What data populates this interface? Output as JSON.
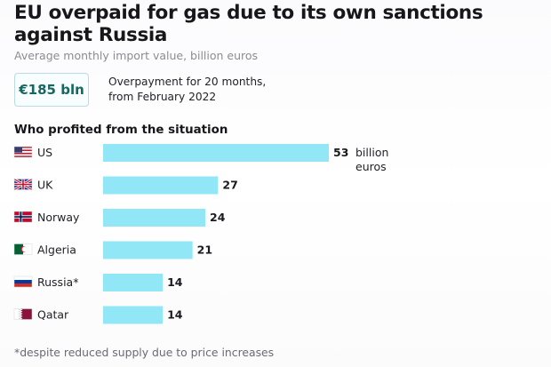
{
  "header": {
    "title": "EU overpaid for gas due to its own sanctions against Russia",
    "subtitle": "Average monthly import value, billion euros"
  },
  "summary": {
    "badge": "€185 bln",
    "text": "Overpayment for 20 months,\nfrom February 2022"
  },
  "section": {
    "title": "Who profited from the situation"
  },
  "footnote": "*despite reduced supply due to price increases",
  "colors": {
    "bar": "#91e7f5",
    "accent": "#15675f"
  },
  "chart_data": {
    "type": "bar",
    "categories": [
      "US",
      "UK",
      "Norway",
      "Algeria",
      "Russia*",
      "Qatar"
    ],
    "values": [
      53,
      27,
      24,
      21,
      14,
      14
    ],
    "unit_label": "billion\neuros",
    "flag_icons": [
      "us-flag-icon",
      "uk-flag-icon",
      "norway-flag-icon",
      "algeria-flag-icon",
      "russia-flag-icon",
      "qatar-flag-icon"
    ]
  }
}
